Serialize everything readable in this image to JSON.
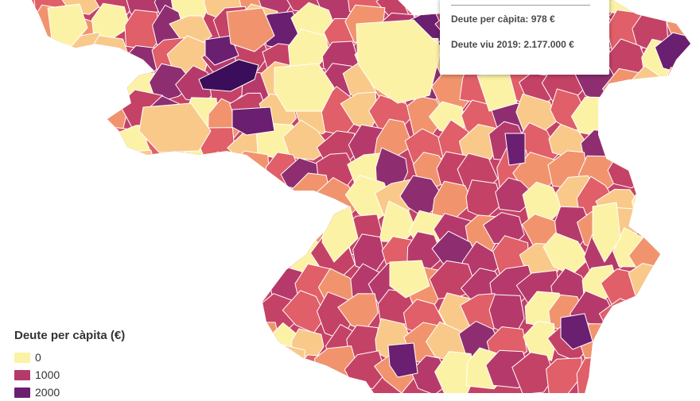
{
  "tooltip": {
    "per_capita_label": "Deute per càpita:",
    "per_capita_value": "978 €",
    "debt_label": "Deute viu 2019:",
    "debt_value": "2.177.000 €"
  },
  "legend": {
    "title": "Deute per càpita (€)",
    "items": [
      {
        "label": "0",
        "color": "#fcf2a6"
      },
      {
        "label": "1000",
        "color": "#b53a6b"
      },
      {
        "label": "2000",
        "color": "#6b1f70"
      }
    ]
  },
  "palette": {
    "background": "#ffffff",
    "border": "#ffffff",
    "classes": [
      "#fcf2a6",
      "#f9c98a",
      "#f1946e",
      "#e05f68",
      "#c54267",
      "#b53a6b",
      "#8e2e71",
      "#6b1f70",
      "#3a0e5a"
    ]
  }
}
